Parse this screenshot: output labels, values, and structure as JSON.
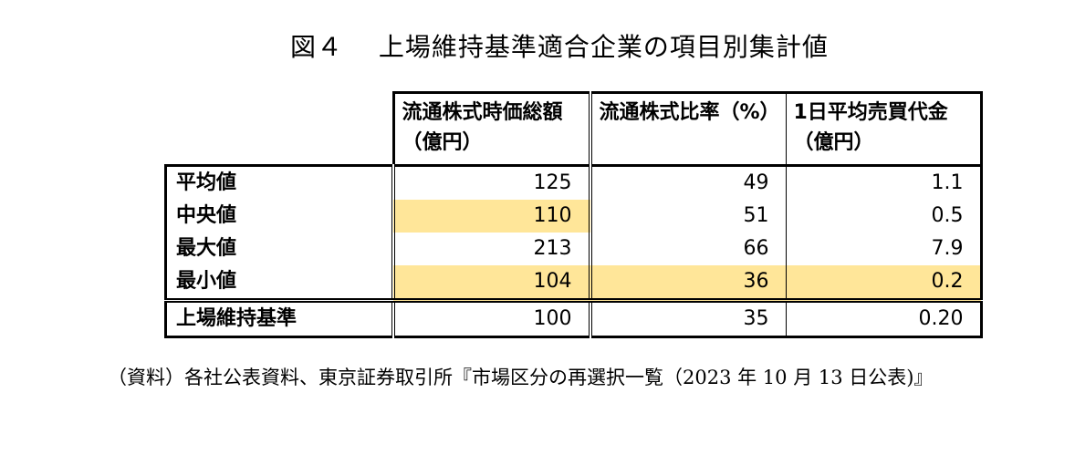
{
  "title": "図４　 上場維持基準適合企業の項目別集計値",
  "table": {
    "headers": [
      "流通株式時価総額（億円）",
      "流通株式比率（%）",
      "1日平均売買代金（億円）"
    ],
    "rows": [
      {
        "label": "平均値",
        "values": [
          "125",
          "49",
          "1.1"
        ]
      },
      {
        "label": "中央値",
        "values": [
          "110",
          "51",
          "0.5"
        ]
      },
      {
        "label": "最大値",
        "values": [
          "213",
          "66",
          "7.9"
        ]
      },
      {
        "label": "最小値",
        "values": [
          "104",
          "36",
          "0.2"
        ]
      },
      {
        "label": "上場維持基準",
        "values": [
          "100",
          "35",
          "0.20"
        ]
      }
    ],
    "highlight_color": "#ffe699"
  },
  "note": "（資料）各社公表資料、東京証券取引所『市場区分の再選択一覧（2023 年 10 月 13 日公表)』"
}
